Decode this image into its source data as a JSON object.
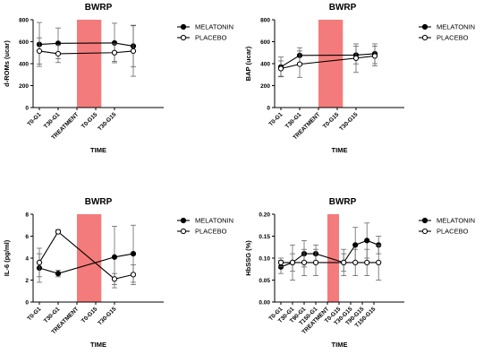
{
  "chart_data": [
    {
      "type": "line",
      "title": "BWRP",
      "xlabel": "TIME",
      "ylabel": "d-ROMs (ucar)",
      "ylim": [
        0,
        800
      ],
      "yticks": [
        0,
        200,
        400,
        600,
        800
      ],
      "categories": [
        "T0-G1",
        "T30-G1",
        "TREATMENT",
        "T0-G15",
        "T30-G15"
      ],
      "shaded": {
        "label": "TREATMENT",
        "from": 2.0,
        "to": 3.3,
        "color": "#f47b7b"
      },
      "series": [
        {
          "name": "MELATONIN",
          "marker": "filled",
          "x": [
            0,
            1,
            4,
            5
          ],
          "values": [
            575,
            585,
            588,
            560
          ],
          "err": [
            200,
            140,
            180,
            190
          ]
        },
        {
          "name": "PLACEBO",
          "marker": "open",
          "x": [
            0,
            1,
            4,
            5
          ],
          "values": [
            515,
            490,
            500,
            515
          ],
          "err": [
            120,
            80,
            80,
            230
          ]
        }
      ],
      "legend": "right"
    },
    {
      "type": "line",
      "title": "BWRP",
      "xlabel": "TIME",
      "ylabel": "BAP (ucar)",
      "ylim": [
        0,
        800
      ],
      "yticks": [
        0,
        200,
        400,
        600,
        800
      ],
      "categories": [
        "T0-G1",
        "T30-G1",
        "TREATMENT",
        "T0-G15",
        "T30-G15"
      ],
      "shaded": {
        "label": "TREATMENT",
        "from": 2.0,
        "to": 3.3,
        "color": "#f47b7b"
      },
      "series": [
        {
          "name": "MELATONIN",
          "marker": "filled",
          "x": [
            0,
            1,
            4,
            5
          ],
          "values": [
            370,
            475,
            478,
            490
          ],
          "err": [
            90,
            70,
            80,
            90
          ]
        },
        {
          "name": "PLACEBO",
          "marker": "open",
          "x": [
            0,
            1,
            4,
            5
          ],
          "values": [
            355,
            395,
            450,
            470
          ],
          "err": [
            70,
            120,
            130,
            90
          ]
        }
      ],
      "legend": "right"
    },
    {
      "type": "line",
      "title": "BWRP",
      "xlabel": "TIME",
      "ylabel": "IL-6 (pg/ml)",
      "ylim": [
        0,
        8
      ],
      "yticks": [
        0,
        2,
        4,
        6,
        8
      ],
      "categories": [
        "T0-G1",
        "T30-G1",
        "TREATMENT",
        "T0-G15",
        "T30-G15"
      ],
      "shaded": {
        "label": "TREATMENT",
        "from": 2.0,
        "to": 3.3,
        "color": "#f47b7b"
      },
      "series": [
        {
          "name": "MELATONIN",
          "marker": "filled",
          "x": [
            0,
            1,
            4,
            5
          ],
          "values": [
            3.1,
            2.6,
            4.1,
            4.4
          ],
          "err": [
            1.3,
            0.3,
            2.8,
            2.6
          ]
        },
        {
          "name": "PLACEBO",
          "marker": "open",
          "x": [
            0,
            1,
            4,
            5
          ],
          "values": [
            3.6,
            6.4,
            2.1,
            2.5
          ],
          "err": [
            1.3,
            0.2,
            0.5,
            0.9
          ]
        }
      ],
      "legend": "right"
    },
    {
      "type": "line",
      "title": "BWRP",
      "xlabel": "TIME",
      "ylabel": "HbSSG (%)",
      "ylim": [
        0,
        0.2
      ],
      "yticks": [
        "0.00",
        "0.05",
        "0.10",
        "0.15",
        "0.20"
      ],
      "categories": [
        "T0-G1",
        "T30-G1",
        "T90-G1",
        "T150-G1",
        "TREATMENT",
        "T0-G15",
        "T30-G15",
        "T90-G15",
        "T150-G15"
      ],
      "shaded": {
        "label": "TREATMENT",
        "from": 4.0,
        "to": 5.0,
        "color": "#f47b7b"
      },
      "series": [
        {
          "name": "MELATONIN",
          "marker": "filled",
          "x": [
            0,
            1,
            2,
            3,
            5.4,
            6.4,
            7.4,
            8.4
          ],
          "values": [
            0.08,
            0.09,
            0.11,
            0.11,
            0.09,
            0.13,
            0.14,
            0.13
          ],
          "err": [
            0.015,
            0.02,
            0.03,
            0.02,
            0.02,
            0.04,
            0.04,
            0.02
          ]
        },
        {
          "name": "PLACEBO",
          "marker": "open",
          "x": [
            0,
            1,
            2,
            3,
            5.4,
            6.4,
            7.4,
            8.4
          ],
          "values": [
            0.09,
            0.09,
            0.09,
            0.09,
            0.09,
            0.09,
            0.09,
            0.09
          ],
          "err": [
            0.01,
            0.04,
            0.03,
            0.03,
            0.03,
            0.03,
            0.03,
            0.04
          ]
        }
      ],
      "legend": "right"
    }
  ]
}
